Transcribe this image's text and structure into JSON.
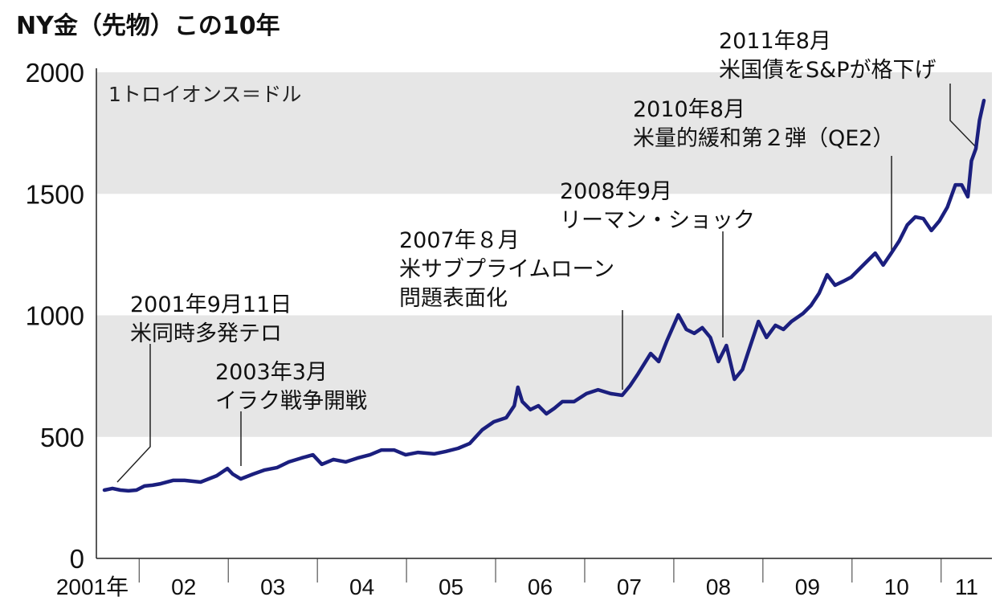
{
  "chart_data": {
    "type": "line",
    "title": "NY金（先物）この10年",
    "ylabel": "1トロイオンス＝ドル",
    "ylim": [
      0,
      2000
    ],
    "yticks": [
      "2000",
      "1500",
      "1000",
      "500",
      "0"
    ],
    "xlim": [
      2001.52,
      2011.57
    ],
    "xtick_labels": [
      "2001年",
      "02",
      "03",
      "04",
      "05",
      "06",
      "07",
      "08",
      "09",
      "10",
      "11"
    ],
    "shaded_bands": [
      [
        1500,
        2000
      ],
      [
        500,
        1000
      ]
    ],
    "grid": false,
    "line_color": "#1b1f7e",
    "band_color": "#e6e6e6",
    "series": [
      {
        "x": [
          2001.61,
          2001.7,
          2001.79,
          2001.88,
          2001.97,
          2002.06,
          2002.15,
          2002.24,
          2002.38,
          2002.51,
          2002.69,
          2002.87,
          2002.99,
          2003.05,
          2003.14,
          2003.28,
          2003.41,
          2003.55,
          2003.68,
          2003.82,
          2003.95,
          2004.05,
          2004.18,
          2004.32,
          2004.45,
          2004.59,
          2004.72,
          2004.86,
          2004.99,
          2005.13,
          2005.31,
          2005.44,
          2005.58,
          2005.71,
          2005.85,
          2005.98,
          2006.12,
          2006.21,
          2006.25,
          2006.3,
          2006.39,
          2006.48,
          2006.57,
          2006.66,
          2006.75,
          2006.88,
          2007.02,
          2007.15,
          2007.29,
          2007.42,
          2007.51,
          2007.6,
          2007.74,
          2007.83,
          2007.92,
          2008.05,
          2008.14,
          2008.23,
          2008.32,
          2008.41,
          2008.5,
          2008.59,
          2008.68,
          2008.77,
          2008.86,
          2008.95,
          2009.04,
          2009.14,
          2009.23,
          2009.32,
          2009.45,
          2009.54,
          2009.63,
          2009.72,
          2009.81,
          2009.9,
          2009.99,
          2010.08,
          2010.17,
          2010.26,
          2010.35,
          2010.44,
          2010.53,
          2010.62,
          2010.71,
          2010.8,
          2010.89,
          2010.98,
          2011.07,
          2011.16,
          2011.23,
          2011.3,
          2011.34,
          2011.39,
          2011.43,
          2011.48
        ],
        "y": [
          281,
          288,
          281,
          278,
          281,
          298,
          301,
          307,
          321,
          321,
          314,
          340,
          370,
          347,
          327,
          347,
          364,
          374,
          397,
          413,
          426,
          387,
          407,
          397,
          413,
          426,
          446,
          446,
          426,
          436,
          430,
          440,
          453,
          473,
          529,
          562,
          579,
          628,
          704,
          645,
          612,
          628,
          595,
          618,
          645,
          645,
          678,
          694,
          678,
          671,
          711,
          760,
          843,
          810,
          893,
          1002,
          942,
          926,
          949,
          909,
          810,
          876,
          737,
          777,
          876,
          975,
          909,
          959,
          942,
          975,
          1008,
          1041,
          1091,
          1167,
          1124,
          1140,
          1157,
          1190,
          1223,
          1256,
          1207,
          1256,
          1306,
          1372,
          1405,
          1398,
          1349,
          1388,
          1445,
          1537,
          1537,
          1488,
          1636,
          1686,
          1802,
          1884
        ]
      }
    ],
    "annotations": [
      {
        "lines": [
          "2001年9月11日",
          "米同時多発テロ"
        ]
      },
      {
        "lines": [
          "2003年3月",
          "イラク戦争開戦"
        ]
      },
      {
        "lines": [
          "2007年８月",
          "米サブプライムローン",
          "問題表面化"
        ]
      },
      {
        "lines": [
          "2008年9月",
          "リーマン・ショック"
        ]
      },
      {
        "lines": [
          "2010年8月",
          "米量的緩和第２弾（QE2）"
        ]
      },
      {
        "lines": [
          "2011年8月",
          "米国債をS&Pが格下げ"
        ]
      }
    ]
  }
}
